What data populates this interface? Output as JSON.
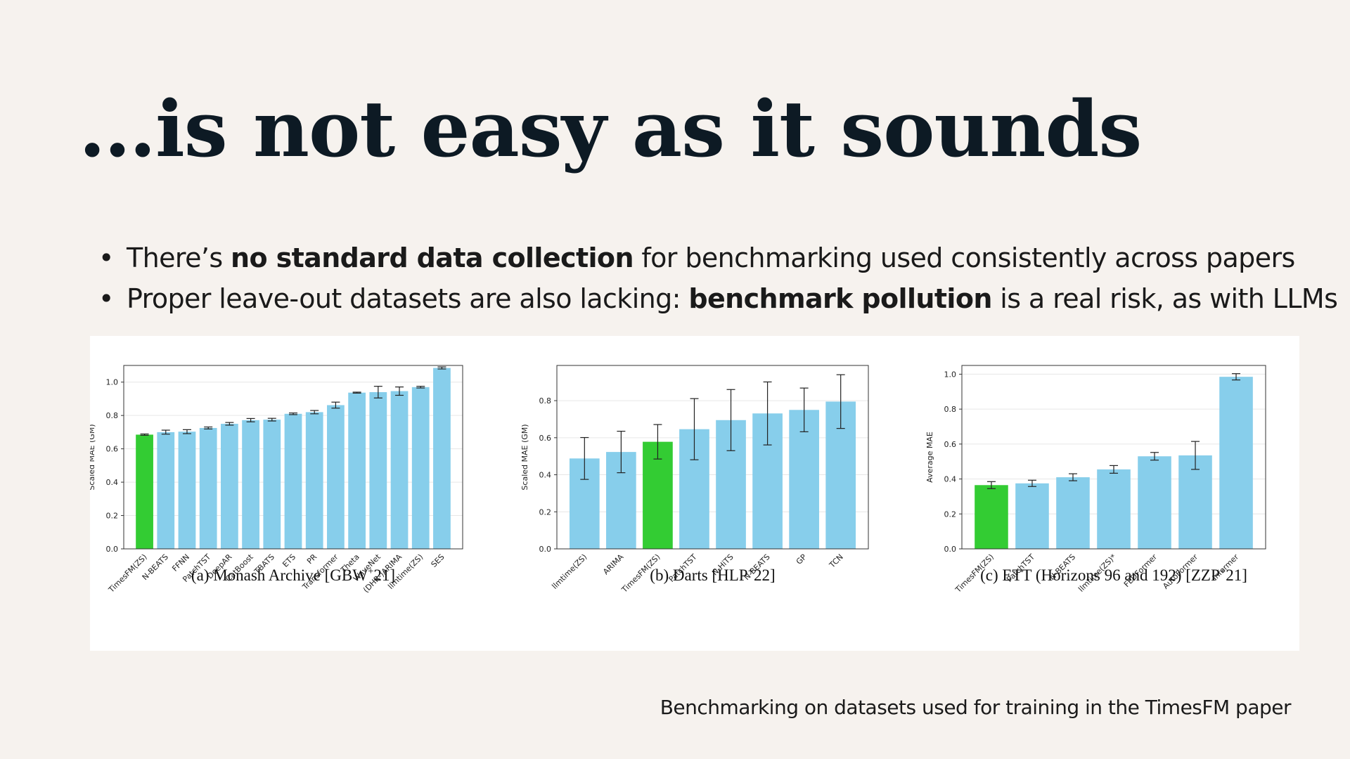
{
  "slide": {
    "title": "…is not easy as it sounds",
    "bullets": [
      {
        "pre": "There’s ",
        "bold": "no standard data collection",
        "post": " for benchmarking used consistently across papers"
      },
      {
        "pre": "Proper leave-out datasets are also lacking: ",
        "bold": "benchmark pollution",
        "post": " is a real risk, as with LLMs"
      }
    ],
    "caption": "Benchmarking on datasets used for training in the TimesFM paper"
  },
  "colors": {
    "highlight": "#33cc33",
    "bar": "#87ceeb",
    "error": "#222222",
    "grid": "#e6e6e6"
  },
  "chart_data": [
    {
      "type": "bar",
      "caption_prefix": "(a)",
      "caption": "Monash Archive [GBW",
      "caption_sup": "+",
      "caption_suffix": "21]",
      "ylabel": "Scaled MAE (GM)",
      "xlabel": "",
      "ylim": [
        0,
        1.1
      ],
      "yticks": [
        0.0,
        0.2,
        0.4,
        0.6,
        0.8,
        1.0
      ],
      "ytick_labels": [
        "0.0",
        "0.2",
        "0.4",
        "0.6",
        "0.8",
        "1.0"
      ],
      "grid": true,
      "categories": [
        "TimesFM(ZS)",
        "N-BEATS",
        "FFNN",
        "PatchTST",
        "DeepAR",
        "CatBoost",
        "TBATS",
        "ETS",
        "PR",
        "Transformer",
        "Theta",
        "WaveNet",
        "(DHR-)ARIMA",
        "llmtime(ZS)",
        "SES"
      ],
      "values": [
        0.685,
        0.7,
        0.703,
        0.725,
        0.75,
        0.772,
        0.775,
        0.81,
        0.82,
        0.862,
        0.937,
        0.94,
        0.946,
        0.97,
        1.085
      ],
      "errors": [
        0.004,
        0.012,
        0.012,
        0.006,
        0.008,
        0.01,
        0.008,
        0.005,
        0.01,
        0.018,
        0.003,
        0.035,
        0.025,
        0.005,
        0.006
      ],
      "highlight_index": 0
    },
    {
      "type": "bar",
      "caption_prefix": "(b)",
      "caption": "Darts [HLP",
      "caption_sup": "+",
      "caption_suffix": "22]",
      "ylabel": "Scaled MAE (GM)",
      "xlabel": "",
      "ylim": [
        0,
        0.99
      ],
      "yticks": [
        0.0,
        0.2,
        0.4,
        0.6,
        0.8
      ],
      "ytick_labels": [
        "0.0",
        "0.2",
        "0.4",
        "0.6",
        "0.8"
      ],
      "grid": true,
      "categories": [
        "llmtime(ZS)",
        "ARIMA",
        "TimesFM(ZS)",
        "PatchTST",
        "N-HiTS",
        "N-BEATS",
        "GP",
        "TCN"
      ],
      "values": [
        0.488,
        0.523,
        0.578,
        0.646,
        0.695,
        0.731,
        0.75,
        0.795
      ],
      "errors": [
        0.113,
        0.112,
        0.093,
        0.165,
        0.165,
        0.17,
        0.118,
        0.145
      ],
      "highlight_index": 2
    },
    {
      "type": "bar",
      "caption_prefix": "(c)",
      "caption": "ETT (Horizons 96 and 192) [ZZP",
      "caption_sup": "+",
      "caption_suffix": "21]",
      "ylabel": "Average MAE",
      "xlabel": "",
      "ylim": [
        0,
        1.05
      ],
      "yticks": [
        0.0,
        0.2,
        0.4,
        0.6,
        0.8,
        1.0
      ],
      "ytick_labels": [
        "0.0",
        "0.2",
        "0.4",
        "0.6",
        "0.8",
        "1.0"
      ],
      "grid": true,
      "categories": [
        "TimesFM(ZS)",
        "PatchTST",
        "N-BEATS",
        "llmtime(ZS)*",
        "FEDFormer",
        "AutoFormer",
        "Informer"
      ],
      "values": [
        0.365,
        0.375,
        0.41,
        0.455,
        0.53,
        0.535,
        0.985
      ],
      "errors": [
        0.02,
        0.018,
        0.02,
        0.022,
        0.022,
        0.08,
        0.018
      ],
      "highlight_index": 0
    }
  ]
}
